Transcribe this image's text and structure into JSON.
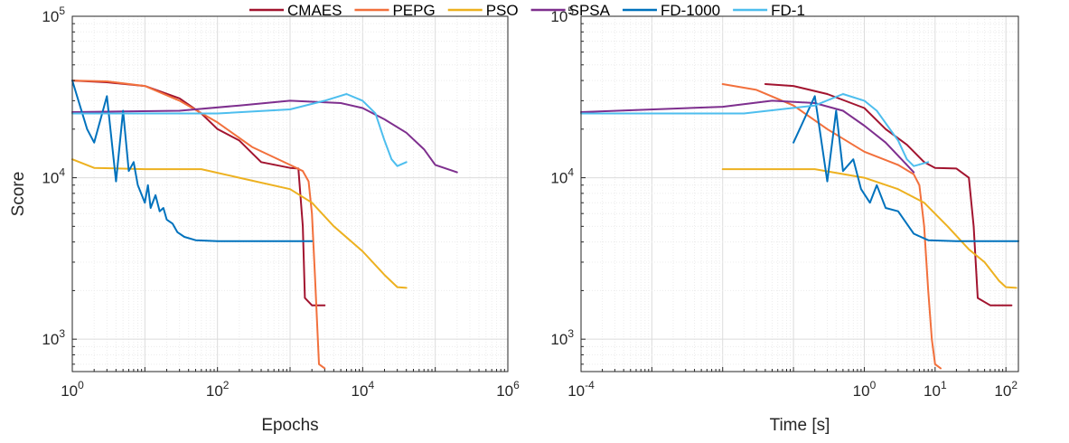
{
  "legend": [
    {
      "name": "CMAES",
      "color": "#A2142F"
    },
    {
      "name": "PEPG",
      "color": "#F2703C"
    },
    {
      "name": "PSO",
      "color": "#EDB120"
    },
    {
      "name": "SPSA",
      "color": "#7E2F8E"
    },
    {
      "name": "FD-1000",
      "color": "#0072BD"
    },
    {
      "name": "FD-1",
      "color": "#4DBEEE"
    }
  ],
  "chart_data": [
    {
      "type": "line",
      "xlabel": "Epochs",
      "ylabel": "Score",
      "xscale": "log",
      "yscale": "log",
      "xlim": [
        1,
        1000000
      ],
      "ylim": [
        630,
        100000
      ],
      "xticks": [
        {
          "base": "10",
          "exp": "0",
          "v": 1
        },
        {
          "base": "10",
          "exp": "2",
          "v": 100
        },
        {
          "base": "10",
          "exp": "4",
          "v": 10000
        },
        {
          "base": "10",
          "exp": "6",
          "v": 1000000
        }
      ],
      "yticks": [
        {
          "base": "10",
          "exp": "3",
          "v": 1000
        },
        {
          "base": "10",
          "exp": "4",
          "v": 10000
        },
        {
          "base": "10",
          "exp": "5",
          "v": 100000
        }
      ],
      "grid": true,
      "series": [
        {
          "name": "CMAES",
          "points": [
            [
              1,
              40000
            ],
            [
              3,
              39000
            ],
            [
              10,
              37000
            ],
            [
              30,
              31000
            ],
            [
              60,
              25000
            ],
            [
              100,
              20000
            ],
            [
              200,
              17000
            ],
            [
              400,
              12500
            ],
            [
              1000,
              11500
            ],
            [
              1300,
              11400
            ],
            [
              1500,
              5000
            ],
            [
              1600,
              1800
            ],
            [
              2000,
              1620
            ],
            [
              3000,
              1620
            ]
          ]
        },
        {
          "name": "PEPG",
          "points": [
            [
              1,
              40000
            ],
            [
              3,
              39500
            ],
            [
              10,
              37000
            ],
            [
              30,
              30000
            ],
            [
              100,
              22000
            ],
            [
              300,
              15500
            ],
            [
              1000,
              12000
            ],
            [
              1500,
              11000
            ],
            [
              1800,
              9500
            ],
            [
              2000,
              6000
            ],
            [
              2200,
              2500
            ],
            [
              2500,
              700
            ],
            [
              3000,
              660
            ]
          ]
        },
        {
          "name": "PSO",
          "points": [
            [
              1,
              13000
            ],
            [
              2,
              11500
            ],
            [
              10,
              11300
            ],
            [
              60,
              11300
            ],
            [
              200,
              10000
            ],
            [
              1000,
              8500
            ],
            [
              2000,
              7000
            ],
            [
              4000,
              5000
            ],
            [
              10000,
              3500
            ],
            [
              20000,
              2500
            ],
            [
              30000,
              2100
            ],
            [
              40000,
              2080
            ]
          ]
        },
        {
          "name": "SPSA",
          "points": [
            [
              1,
              25500
            ],
            [
              30,
              26000
            ],
            [
              200,
              28000
            ],
            [
              1000,
              30000
            ],
            [
              5000,
              29000
            ],
            [
              10000,
              27000
            ],
            [
              20000,
              23000
            ],
            [
              40000,
              19000
            ],
            [
              70000,
              15000
            ],
            [
              100000,
              12000
            ],
            [
              200000,
              10800
            ]
          ]
        },
        {
          "name": "FD-1000",
          "points": [
            [
              1,
              40000
            ],
            [
              1.6,
              20000
            ],
            [
              2,
              16500
            ],
            [
              3,
              32000
            ],
            [
              4,
              9500
            ],
            [
              5,
              26000
            ],
            [
              6,
              11000
            ],
            [
              7,
              12500
            ],
            [
              8,
              9000
            ],
            [
              10,
              7000
            ],
            [
              11,
              9000
            ],
            [
              12,
              6500
            ],
            [
              14,
              7800
            ],
            [
              16,
              6200
            ],
            [
              18,
              6500
            ],
            [
              20,
              5500
            ],
            [
              24,
              5200
            ],
            [
              28,
              4600
            ],
            [
              35,
              4300
            ],
            [
              50,
              4100
            ],
            [
              100,
              4050
            ],
            [
              500,
              4050
            ],
            [
              2000,
              4050
            ]
          ]
        },
        {
          "name": "FD-1",
          "points": [
            [
              1,
              25000
            ],
            [
              100,
              25000
            ],
            [
              1000,
              26500
            ],
            [
              3000,
              30000
            ],
            [
              6000,
              33000
            ],
            [
              10000,
              30000
            ],
            [
              15000,
              25000
            ],
            [
              20000,
              17000
            ],
            [
              25000,
              13000
            ],
            [
              30000,
              11800
            ],
            [
              40000,
              12500
            ]
          ]
        }
      ]
    },
    {
      "type": "line",
      "xlabel": "Time [s]",
      "ylabel": "",
      "xscale": "log",
      "yscale": "log",
      "xlim": [
        0.0001,
        150
      ],
      "ylim": [
        630,
        100000
      ],
      "xticks": [
        {
          "base": "10",
          "exp": "-4",
          "v": 0.0001
        },
        {
          "base": "10",
          "exp": "0",
          "v": 1
        },
        {
          "base": "10",
          "exp": "1",
          "v": 10
        },
        {
          "base": "10",
          "exp": "2",
          "v": 100
        }
      ],
      "yticks": [
        {
          "base": "10",
          "exp": "3",
          "v": 1000
        },
        {
          "base": "10",
          "exp": "4",
          "v": 10000
        },
        {
          "base": "10",
          "exp": "5",
          "v": 100000
        }
      ],
      "grid": true,
      "series": [
        {
          "name": "CMAES",
          "points": [
            [
              0.04,
              38000
            ],
            [
              0.1,
              37000
            ],
            [
              0.3,
              33000
            ],
            [
              1,
              27000
            ],
            [
              2,
              20000
            ],
            [
              4,
              16000
            ],
            [
              7,
              12500
            ],
            [
              10,
              11500
            ],
            [
              20,
              11400
            ],
            [
              30,
              10000
            ],
            [
              35,
              5000
            ],
            [
              40,
              1800
            ],
            [
              60,
              1620
            ],
            [
              120,
              1620
            ]
          ]
        },
        {
          "name": "PEPG",
          "points": [
            [
              0.01,
              38000
            ],
            [
              0.03,
              35000
            ],
            [
              0.1,
              28000
            ],
            [
              0.3,
              20000
            ],
            [
              1,
              14500
            ],
            [
              3,
              12000
            ],
            [
              5,
              10500
            ],
            [
              6,
              9000
            ],
            [
              7,
              5000
            ],
            [
              8,
              2000
            ],
            [
              9,
              1000
            ],
            [
              10,
              700
            ],
            [
              12,
              660
            ]
          ]
        },
        {
          "name": "PSO",
          "points": [
            [
              0.01,
              11300
            ],
            [
              0.2,
              11300
            ],
            [
              1,
              10000
            ],
            [
              3,
              8500
            ],
            [
              7,
              7000
            ],
            [
              15,
              5000
            ],
            [
              30,
              3600
            ],
            [
              50,
              3000
            ],
            [
              80,
              2300
            ],
            [
              100,
              2100
            ],
            [
              140,
              2080
            ]
          ]
        },
        {
          "name": "SPSA",
          "points": [
            [
              0.0001,
              25500
            ],
            [
              0.01,
              27500
            ],
            [
              0.05,
              30000
            ],
            [
              0.2,
              29000
            ],
            [
              0.5,
              26000
            ],
            [
              1,
              21000
            ],
            [
              2,
              16500
            ],
            [
              4,
              12000
            ],
            [
              5,
              10800
            ]
          ]
        },
        {
          "name": "FD-1000",
          "points": [
            [
              0.1,
              16500
            ],
            [
              0.2,
              32000
            ],
            [
              0.3,
              9500
            ],
            [
              0.4,
              26000
            ],
            [
              0.5,
              11000
            ],
            [
              0.7,
              13000
            ],
            [
              0.9,
              8500
            ],
            [
              1.2,
              7000
            ],
            [
              1.5,
              9000
            ],
            [
              2,
              6500
            ],
            [
              3,
              6200
            ],
            [
              5,
              4500
            ],
            [
              8,
              4100
            ],
            [
              20,
              4050
            ],
            [
              150,
              4050
            ]
          ]
        },
        {
          "name": "FD-1",
          "points": [
            [
              0.0001,
              25000
            ],
            [
              0.02,
              25000
            ],
            [
              0.2,
              28000
            ],
            [
              0.5,
              33000
            ],
            [
              1,
              30000
            ],
            [
              1.5,
              26000
            ],
            [
              3,
              17000
            ],
            [
              4,
              13000
            ],
            [
              5,
              11800
            ],
            [
              8,
              12500
            ]
          ]
        }
      ]
    }
  ]
}
